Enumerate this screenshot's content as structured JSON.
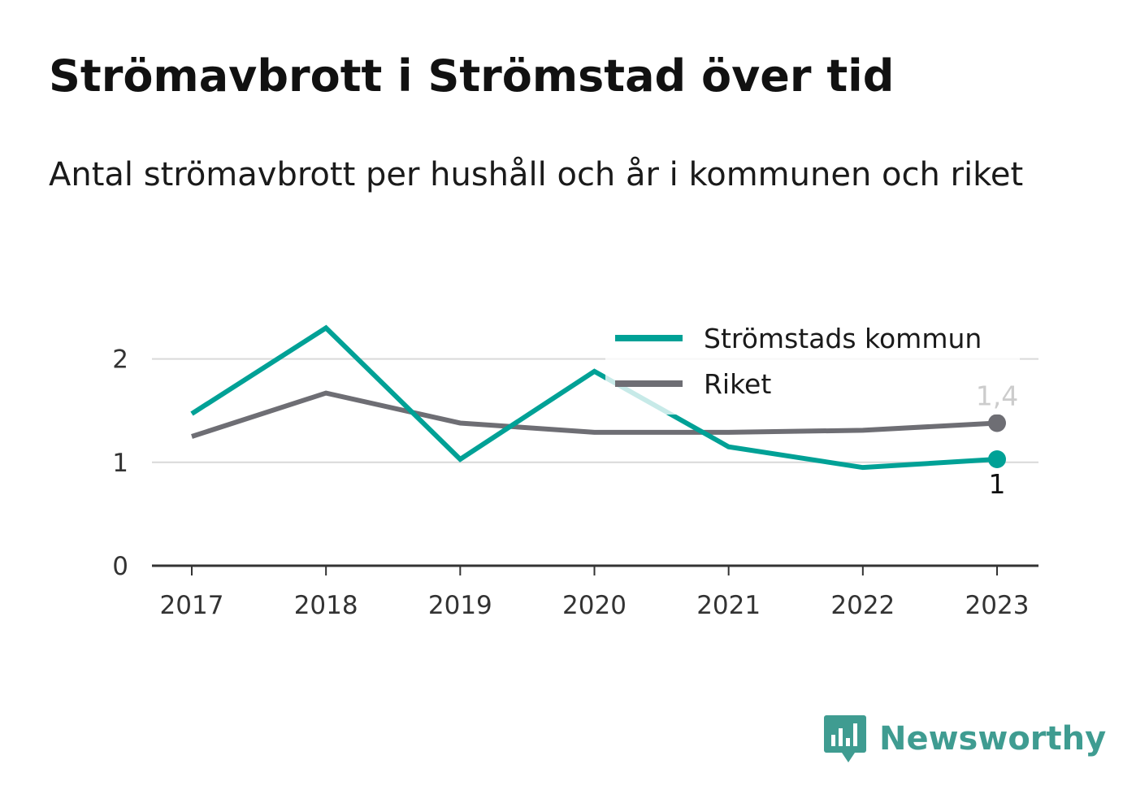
{
  "chart_data": {
    "type": "line",
    "title": "Strömavbrott i Strömstad över tid",
    "subtitle": "Antal strömavbrott per hushåll och år i kommunen och riket",
    "x": [
      "2017",
      "2018",
      "2019",
      "2020",
      "2021",
      "2022",
      "2023"
    ],
    "ylim": [
      0,
      2.5
    ],
    "yticks": [
      0,
      1,
      2
    ],
    "grid": true,
    "legend": "top-right",
    "series": [
      {
        "name": "Strömstads kommun",
        "color": "#00a196",
        "values": [
          1.47,
          2.3,
          1.03,
          1.88,
          1.15,
          0.95,
          1.03
        ],
        "end_label": "1"
      },
      {
        "name": "Riket",
        "color": "#6e6e74",
        "values": [
          1.25,
          1.67,
          1.38,
          1.29,
          1.29,
          1.31,
          1.38
        ],
        "end_label": "1,4"
      }
    ]
  },
  "brand": {
    "name": "Newsworthy",
    "icon": "newsworthy-logo-icon",
    "color": "#3f9c91"
  }
}
